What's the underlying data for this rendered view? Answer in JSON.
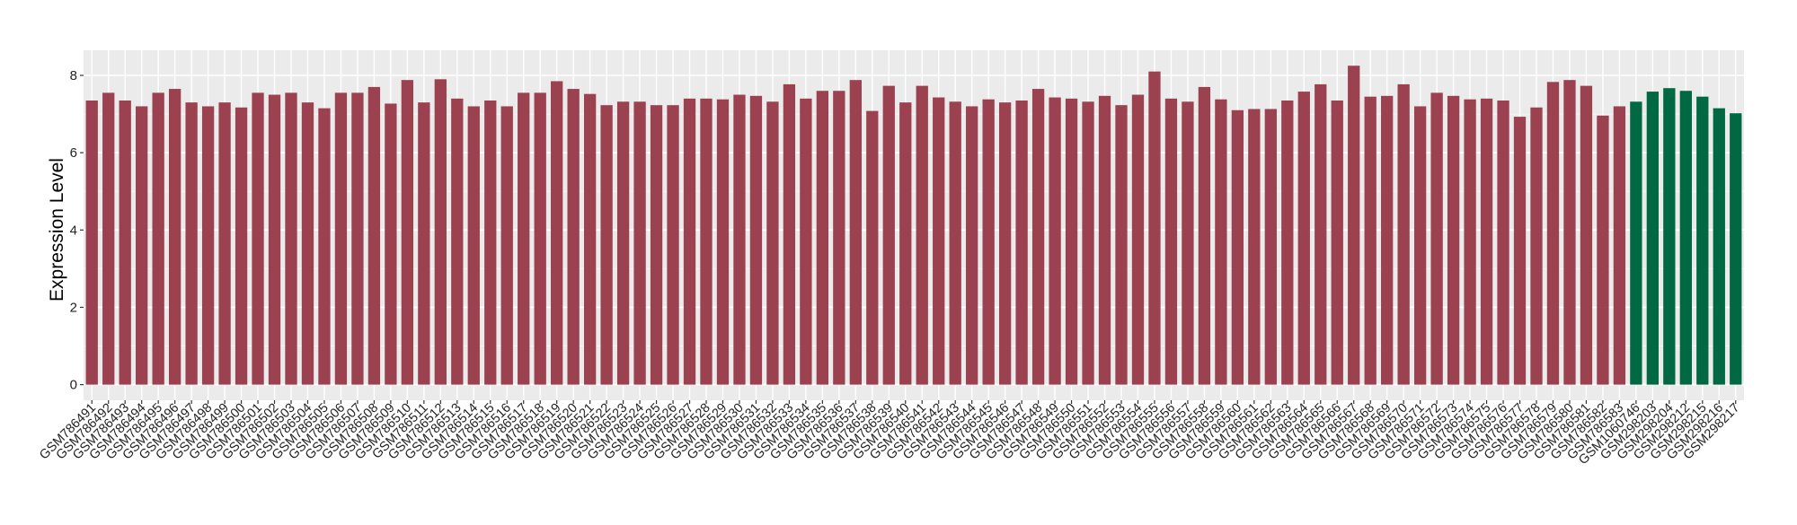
{
  "chart_data": {
    "type": "bar",
    "title": "",
    "xlabel": "",
    "ylabel": "Expression Level",
    "ylim": [
      0,
      8.6
    ],
    "yticks": [
      0,
      2,
      4,
      6,
      8
    ],
    "grid": true,
    "legend": "none",
    "colors": {
      "group1": "#9B4150",
      "group2": "#006843",
      "panel": "#EBEBEB",
      "grid": "#FFFFFF"
    },
    "categories": [
      "GSM786491",
      "GSM786492",
      "GSM786493",
      "GSM786494",
      "GSM786495",
      "GSM786496",
      "GSM786497",
      "GSM786498",
      "GSM786499",
      "GSM786500",
      "GSM786501",
      "GSM786502",
      "GSM786503",
      "GSM786504",
      "GSM786505",
      "GSM786506",
      "GSM786507",
      "GSM786508",
      "GSM786509",
      "GSM786510",
      "GSM786511",
      "GSM786512",
      "GSM786513",
      "GSM786514",
      "GSM786515",
      "GSM786516",
      "GSM786517",
      "GSM786518",
      "GSM786519",
      "GSM786520",
      "GSM786521",
      "GSM786522",
      "GSM786523",
      "GSM786524",
      "GSM786525",
      "GSM786526",
      "GSM786527",
      "GSM786528",
      "GSM786529",
      "GSM786530",
      "GSM786531",
      "GSM786532",
      "GSM786533",
      "GSM786534",
      "GSM786535",
      "GSM786536",
      "GSM786537",
      "GSM786538",
      "GSM786539",
      "GSM786540",
      "GSM786541",
      "GSM786542",
      "GSM786543",
      "GSM786544",
      "GSM786545",
      "GSM786546",
      "GSM786547",
      "GSM786548",
      "GSM786549",
      "GSM786550",
      "GSM786551",
      "GSM786552",
      "GSM786553",
      "GSM786554",
      "GSM786555",
      "GSM786556",
      "GSM786557",
      "GSM786558",
      "GSM786559",
      "GSM786560",
      "GSM786561",
      "GSM786562",
      "GSM786563",
      "GSM786564",
      "GSM786565",
      "GSM786566",
      "GSM786567",
      "GSM786568",
      "GSM786569",
      "GSM786570",
      "GSM786571",
      "GSM786572",
      "GSM786573",
      "GSM786574",
      "GSM786575",
      "GSM786576",
      "GSM786577",
      "GSM786578",
      "GSM786579",
      "GSM786580",
      "GSM786581",
      "GSM786582",
      "GSM786583",
      "GSM1060746",
      "GSM298203",
      "GSM298204",
      "GSM298212",
      "GSM298215",
      "GSM298216",
      "GSM298217"
    ],
    "values": [
      7.35,
      7.55,
      7.35,
      7.2,
      7.55,
      7.65,
      7.3,
      7.2,
      7.3,
      7.17,
      7.55,
      7.5,
      7.55,
      7.3,
      7.15,
      7.55,
      7.55,
      7.7,
      7.27,
      7.88,
      7.3,
      7.9,
      7.4,
      7.2,
      7.35,
      7.2,
      7.55,
      7.55,
      7.85,
      7.65,
      7.52,
      7.23,
      7.32,
      7.32,
      7.23,
      7.23,
      7.4,
      7.4,
      7.38,
      7.5,
      7.47,
      7.32,
      7.77,
      7.4,
      7.6,
      7.6,
      7.88,
      7.08,
      7.73,
      7.3,
      7.73,
      7.43,
      7.32,
      7.2,
      7.38,
      7.3,
      7.35,
      7.65,
      7.43,
      7.4,
      7.32,
      7.47,
      7.23,
      7.5,
      8.1,
      7.4,
      7.32,
      7.7,
      7.38,
      7.1,
      7.13,
      7.13,
      7.35,
      7.58,
      7.77,
      7.35,
      8.25,
      7.45,
      7.47,
      7.77,
      7.2,
      7.55,
      7.47,
      7.38,
      7.4,
      7.35,
      6.93,
      7.17,
      7.83,
      7.88,
      7.73,
      6.96,
      7.2,
      7.32,
      7.58,
      7.67,
      7.6,
      7.45,
      7.15,
      7.02
    ],
    "groups": [
      "group1",
      "group1",
      "group1",
      "group1",
      "group1",
      "group1",
      "group1",
      "group1",
      "group1",
      "group1",
      "group1",
      "group1",
      "group1",
      "group1",
      "group1",
      "group1",
      "group1",
      "group1",
      "group1",
      "group1",
      "group1",
      "group1",
      "group1",
      "group1",
      "group1",
      "group1",
      "group1",
      "group1",
      "group1",
      "group1",
      "group1",
      "group1",
      "group1",
      "group1",
      "group1",
      "group1",
      "group1",
      "group1",
      "group1",
      "group1",
      "group1",
      "group1",
      "group1",
      "group1",
      "group1",
      "group1",
      "group1",
      "group1",
      "group1",
      "group1",
      "group1",
      "group1",
      "group1",
      "group1",
      "group1",
      "group1",
      "group1",
      "group1",
      "group1",
      "group1",
      "group1",
      "group1",
      "group1",
      "group1",
      "group1",
      "group1",
      "group1",
      "group1",
      "group1",
      "group1",
      "group1",
      "group1",
      "group1",
      "group1",
      "group1",
      "group1",
      "group1",
      "group1",
      "group1",
      "group1",
      "group1",
      "group1",
      "group1",
      "group1",
      "group1",
      "group1",
      "group1",
      "group1",
      "group1",
      "group1",
      "group1",
      "group1",
      "group1",
      "group2",
      "group2",
      "group2",
      "group2",
      "group2",
      "group2",
      "group2"
    ]
  }
}
